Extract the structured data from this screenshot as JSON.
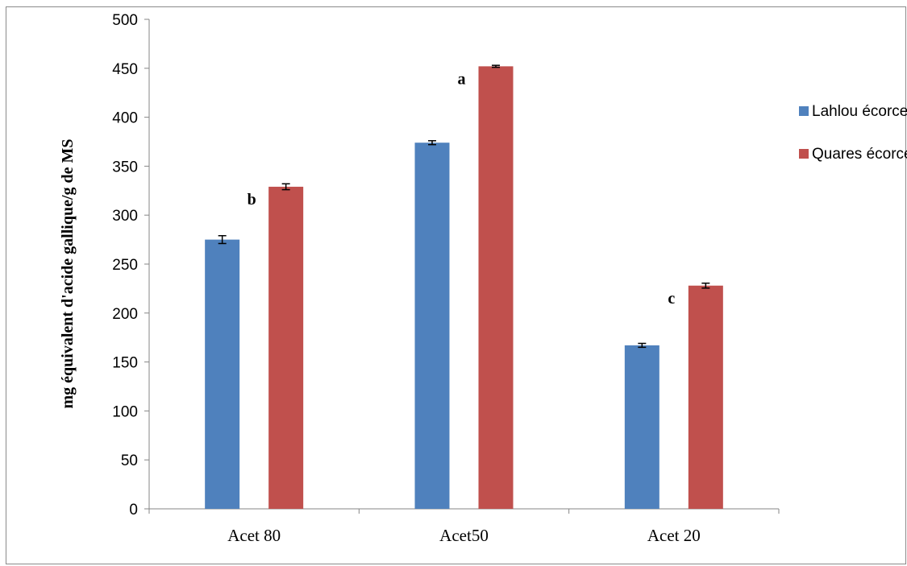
{
  "chart_data": {
    "type": "bar",
    "ylabel": "mg équivalent d'acide gallique/g de MS",
    "xlabel": "",
    "ylim": [
      0,
      500
    ],
    "yticks": [
      0,
      50,
      100,
      150,
      200,
      250,
      300,
      350,
      400,
      450,
      500
    ],
    "categories": [
      "Acet 80",
      "Acet50",
      "Acet 20"
    ],
    "series": [
      {
        "name": "Lahlou écorce",
        "color": "#4f81bd",
        "values": [
          275,
          374,
          167
        ],
        "errors": [
          4,
          2,
          2
        ]
      },
      {
        "name": "Quares  écorce",
        "color": "#c0504d",
        "values": [
          329,
          452,
          228
        ],
        "errors": [
          3,
          1,
          2.5
        ]
      }
    ],
    "annotations": [
      "b",
      "a",
      "c"
    ],
    "legend_position": "right",
    "grid": false
  }
}
